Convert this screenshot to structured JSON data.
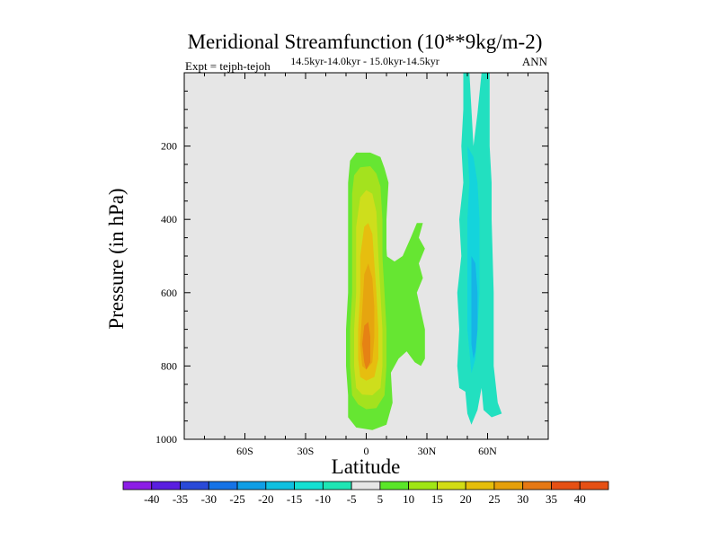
{
  "chart_data": {
    "type": "contour",
    "title": "Meridional Streamfunction (10**9kg/m-2)",
    "left_string": "Expt = tejph-tejoh",
    "center_string": "14.5kyr-14.0kyr - 15.0kyr-14.5kyr",
    "right_string": "ANN",
    "xlabel": "Latitude",
    "ylabel": "Pressure (in hPa)",
    "xlim": [
      -90,
      90
    ],
    "ylim": [
      1000,
      0
    ],
    "x_ticks": [
      {
        "value": -60,
        "label": "60S"
      },
      {
        "value": -30,
        "label": "30S"
      },
      {
        "value": 0,
        "label": "0"
      },
      {
        "value": 30,
        "label": "30N"
      },
      {
        "value": 60,
        "label": "60N"
      }
    ],
    "y_ticks": [
      {
        "value": 200,
        "label": "200"
      },
      {
        "value": 400,
        "label": "400"
      },
      {
        "value": 600,
        "label": "600"
      },
      {
        "value": 800,
        "label": "800"
      },
      {
        "value": 1000,
        "label": "1000"
      }
    ],
    "background_color": "#e6e6e6",
    "levels": [
      {
        "label": "-40",
        "color": "#8c1de6"
      },
      {
        "label": "-35",
        "color": "#5a1ee0"
      },
      {
        "label": "-30",
        "color": "#2a4ad8"
      },
      {
        "label": "-25",
        "color": "#1673e6"
      },
      {
        "label": "-20",
        "color": "#0f9ee6"
      },
      {
        "label": "-15",
        "color": "#0fc0e0"
      },
      {
        "label": "-10",
        "color": "#14e0d2"
      },
      {
        "label": "-5",
        "color": "#1ee6b4"
      },
      {
        "label": "5",
        "color": "#e6e6e6"
      },
      {
        "label": "10",
        "color": "#5ae628"
      },
      {
        "label": "15",
        "color": "#a0e614"
      },
      {
        "label": "20",
        "color": "#d2dc14"
      },
      {
        "label": "25",
        "color": "#e6be0a"
      },
      {
        "label": "30",
        "color": "#e6a00a"
      },
      {
        "label": "35",
        "color": "#e67814"
      },
      {
        "label": "40",
        "color": "#e65014"
      }
    ],
    "fill_colors": {
      "plus_5": "#66e632",
      "plus_10": "#a4e21e",
      "plus_15": "#cede1c",
      "plus_20": "#e6be0f",
      "plus_25": "#e6a50f",
      "plus_30": "#e68214",
      "minus_5": "#22e0c0",
      "minus_10": "#14d4dc",
      "minus_15": "#16b4e6"
    },
    "regions": [
      {
        "sign": "positive",
        "level": 5,
        "polygon": [
          [
            -8,
            240
          ],
          [
            -5,
            218
          ],
          [
            2,
            218
          ],
          [
            7,
            230
          ],
          [
            9,
            260
          ],
          [
            11,
            300
          ],
          [
            10,
            400
          ],
          [
            10,
            480
          ],
          [
            11,
            560
          ],
          [
            11,
            640
          ],
          [
            12,
            720
          ],
          [
            12,
            800
          ],
          [
            13,
            900
          ],
          [
            10,
            960
          ],
          [
            3,
            975
          ],
          [
            -5,
            968
          ],
          [
            -9,
            940
          ],
          [
            -9,
            880
          ],
          [
            -10,
            800
          ],
          [
            -10,
            700
          ],
          [
            -9,
            600
          ],
          [
            -9,
            500
          ],
          [
            -9,
            400
          ],
          [
            -9,
            300
          ]
        ]
      },
      {
        "sign": "positive",
        "level": 5,
        "polygon": [
          [
            10,
            500
          ],
          [
            14,
            515
          ],
          [
            18,
            500
          ],
          [
            22,
            450
          ],
          [
            25,
            410
          ],
          [
            28,
            410
          ],
          [
            26,
            450
          ],
          [
            29,
            480
          ],
          [
            26,
            520
          ],
          [
            28,
            560
          ],
          [
            25,
            600
          ],
          [
            27,
            650
          ],
          [
            29,
            700
          ],
          [
            29,
            780
          ],
          [
            27,
            800
          ],
          [
            24,
            790
          ],
          [
            20,
            760
          ],
          [
            16,
            780
          ],
          [
            12,
            820
          ],
          [
            10,
            760
          ]
        ]
      },
      {
        "sign": "positive",
        "level": 10,
        "polygon": [
          [
            -6,
            280
          ],
          [
            -3,
            258
          ],
          [
            2,
            255
          ],
          [
            5,
            275
          ],
          [
            7,
            310
          ],
          [
            8,
            400
          ],
          [
            8,
            500
          ],
          [
            9,
            600
          ],
          [
            10,
            700
          ],
          [
            10,
            800
          ],
          [
            9,
            880
          ],
          [
            5,
            915
          ],
          [
            0,
            918
          ],
          [
            -4,
            905
          ],
          [
            -7,
            880
          ],
          [
            -8,
            800
          ],
          [
            -8,
            700
          ],
          [
            -7,
            600
          ],
          [
            -7,
            500
          ],
          [
            -7,
            400
          ],
          [
            -7,
            330
          ]
        ]
      },
      {
        "sign": "positive",
        "level": 15,
        "polygon": [
          [
            -3,
            340
          ],
          [
            0,
            320
          ],
          [
            3,
            330
          ],
          [
            5,
            380
          ],
          [
            6,
            500
          ],
          [
            7,
            600
          ],
          [
            8,
            700
          ],
          [
            8,
            800
          ],
          [
            7,
            860
          ],
          [
            3,
            880
          ],
          [
            -2,
            878
          ],
          [
            -5,
            860
          ],
          [
            -6,
            800
          ],
          [
            -6,
            700
          ],
          [
            -5,
            600
          ],
          [
            -5,
            500
          ],
          [
            -5,
            420
          ]
        ]
      },
      {
        "sign": "positive",
        "level": 20,
        "polygon": [
          [
            -1,
            420
          ],
          [
            1,
            410
          ],
          [
            3,
            440
          ],
          [
            4,
            520
          ],
          [
            5,
            600
          ],
          [
            6,
            700
          ],
          [
            6,
            780
          ],
          [
            4,
            830
          ],
          [
            0,
            840
          ],
          [
            -3,
            830
          ],
          [
            -4,
            780
          ],
          [
            -4,
            700
          ],
          [
            -3,
            600
          ],
          [
            -3,
            500
          ]
        ]
      },
      {
        "sign": "positive",
        "level": 25,
        "polygon": [
          [
            -1,
            550
          ],
          [
            1,
            520
          ],
          [
            3,
            560
          ],
          [
            4,
            640
          ],
          [
            4,
            720
          ],
          [
            3,
            790
          ],
          [
            0,
            810
          ],
          [
            -2,
            800
          ],
          [
            -3,
            740
          ],
          [
            -2,
            650
          ]
        ]
      },
      {
        "sign": "positive",
        "level": 30,
        "polygon": [
          [
            -1,
            690
          ],
          [
            1,
            680
          ],
          [
            2,
            720
          ],
          [
            2,
            790
          ],
          [
            0,
            810
          ],
          [
            -1,
            790
          ],
          [
            -2,
            740
          ]
        ]
      },
      {
        "sign": "negative",
        "level": -5,
        "polygon": [
          [
            48,
            0
          ],
          [
            51,
            0
          ],
          [
            53,
            200
          ],
          [
            55,
            110
          ],
          [
            57,
            0
          ],
          [
            61,
            0
          ],
          [
            61,
            100
          ],
          [
            61,
            200
          ],
          [
            62,
            300
          ],
          [
            62,
            400
          ],
          [
            63,
            600
          ],
          [
            63,
            800
          ],
          [
            65,
            900
          ],
          [
            67,
            930
          ],
          [
            62,
            940
          ],
          [
            58,
            920
          ],
          [
            57,
            860
          ],
          [
            55,
            920
          ],
          [
            52,
            960
          ],
          [
            50,
            930
          ],
          [
            49,
            870
          ],
          [
            46,
            860
          ],
          [
            45,
            800
          ],
          [
            46,
            700
          ],
          [
            45,
            600
          ],
          [
            47,
            500
          ],
          [
            46,
            400
          ],
          [
            48,
            300
          ],
          [
            47,
            200
          ],
          [
            48,
            100
          ]
        ]
      },
      {
        "sign": "negative",
        "level": -10,
        "polygon": [
          [
            50,
            200
          ],
          [
            53,
            230
          ],
          [
            55,
            300
          ],
          [
            56,
            400
          ],
          [
            56,
            500
          ],
          [
            56,
            600
          ],
          [
            55,
            700
          ],
          [
            54,
            780
          ],
          [
            52,
            820
          ],
          [
            51,
            760
          ],
          [
            50,
            700
          ],
          [
            50,
            600
          ],
          [
            50,
            500
          ],
          [
            50,
            400
          ],
          [
            51,
            300
          ]
        ]
      },
      {
        "sign": "negative",
        "level": -15,
        "polygon": [
          [
            52,
            500
          ],
          [
            54,
            520
          ],
          [
            55,
            600
          ],
          [
            55,
            700
          ],
          [
            54,
            760
          ],
          [
            53,
            780
          ],
          [
            52,
            740
          ],
          [
            52,
            640
          ]
        ]
      }
    ]
  }
}
